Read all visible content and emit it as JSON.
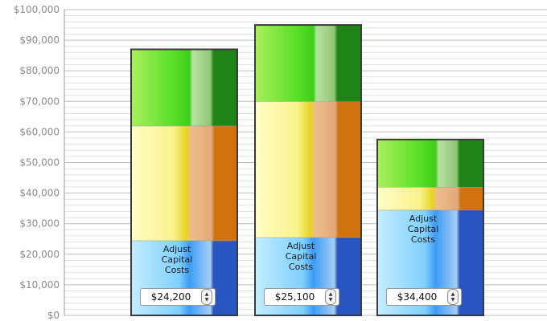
{
  "chart_data": {
    "type": "bar",
    "stacked": true,
    "categories": [
      "",
      "",
      ""
    ],
    "series": [
      {
        "color": "#5aa6ff",
        "values": [
          24500,
          25500,
          34500
        ]
      },
      {
        "color": "#f3e33a",
        "values": [
          37500,
          44500,
          7500
        ]
      },
      {
        "color": "#3dd11e",
        "values": [
          25000,
          25000,
          15500
        ]
      }
    ],
    "y_ticks": [
      "$0",
      "$10,000",
      "$20,000",
      "$30,000",
      "$40,000",
      "$50,000",
      "$60,000",
      "$70,000",
      "$80,000",
      "$90,000",
      "$100,000"
    ],
    "ylim": [
      0,
      100000
    ],
    "grid": true,
    "title": "",
    "xlabel": "",
    "ylabel": ""
  },
  "adjust_controls": [
    {
      "label": "Adjust\nCapital\nCosts",
      "value": "$24,200"
    },
    {
      "label": "Adjust\nCapital\nCosts",
      "value": "$25,100"
    },
    {
      "label": "Adjust\nCapital\nCosts",
      "value": "$34,400"
    }
  ]
}
